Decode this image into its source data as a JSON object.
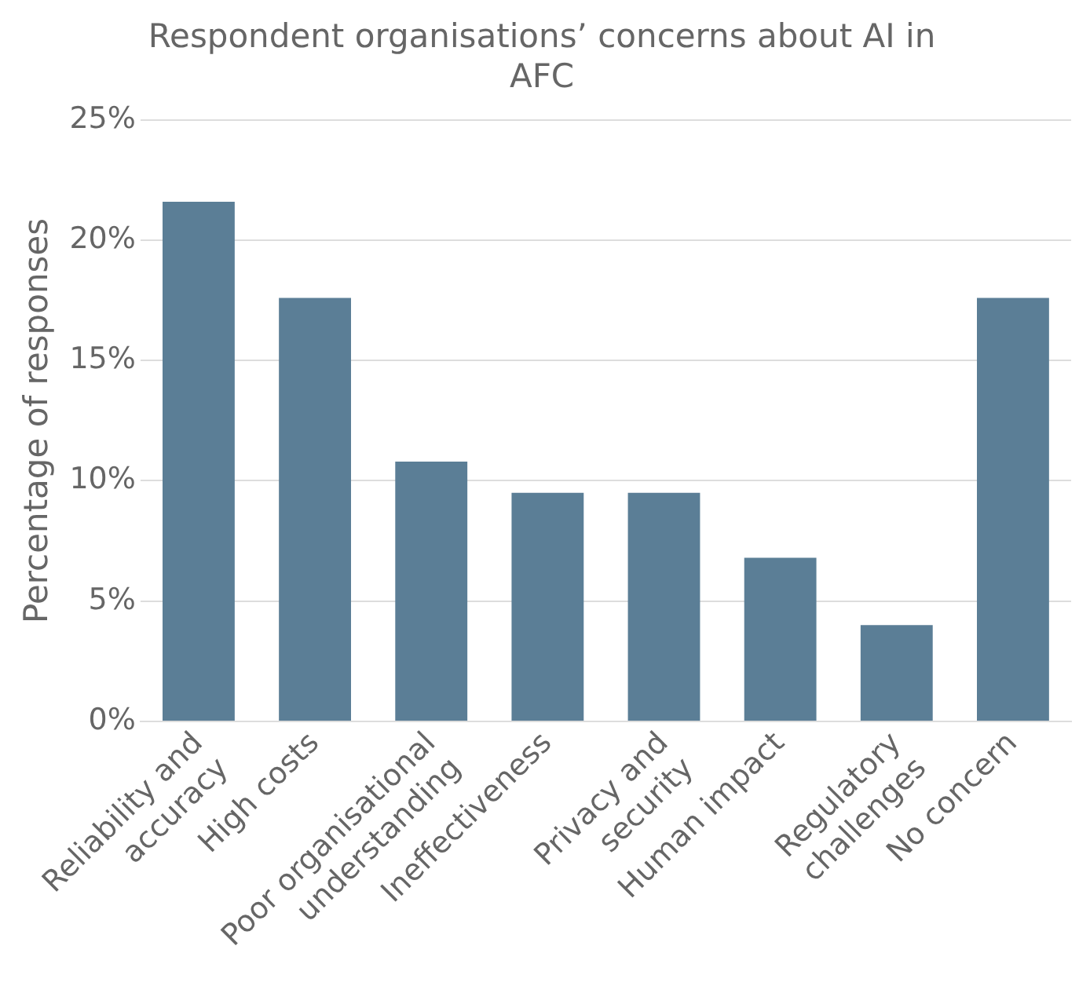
{
  "chart_data": {
    "type": "bar",
    "title": "Respondent organisations’ concerns about AI in AFC",
    "ylabel": "Percentage of responses",
    "categories": [
      "Reliability and accuracy",
      "High costs",
      "Poor organisational understanding",
      "Ineffectiveness",
      "Privacy and security",
      "Human impact",
      "Regulatory challenges",
      "No concern"
    ],
    "values": [
      21.6,
      17.6,
      10.8,
      9.5,
      9.5,
      6.8,
      4.0,
      17.6
    ],
    "color": "#5b7e96",
    "ylim": [
      0,
      25
    ],
    "yticks": [
      {
        "value": 0,
        "label": "0%"
      },
      {
        "value": 5,
        "label": "5%"
      },
      {
        "value": 10,
        "label": "10%"
      },
      {
        "value": 15,
        "label": "15%"
      },
      {
        "value": 20,
        "label": "20%"
      },
      {
        "value": 25,
        "label": "25%"
      }
    ],
    "grid": "y"
  }
}
